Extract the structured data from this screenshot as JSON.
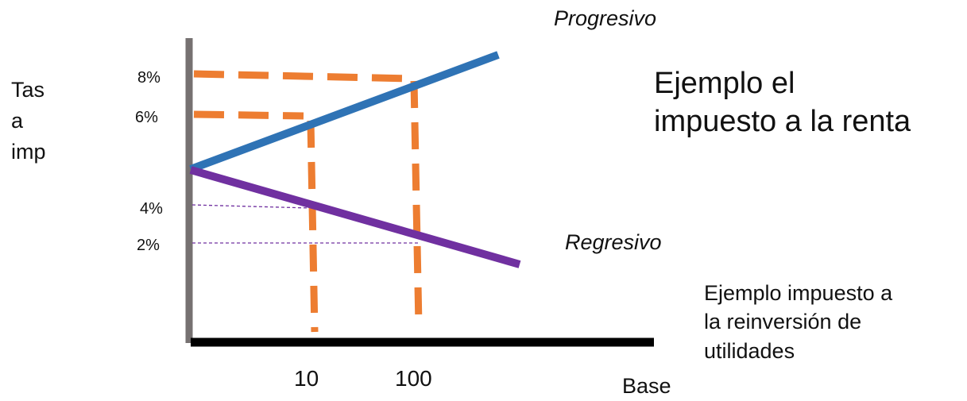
{
  "diagram": {
    "y_axis_label_lines": [
      "Tas",
      "a",
      "imp"
    ],
    "x_axis_label": "Base",
    "y_ticks": [
      "8%",
      "6%",
      "4%",
      "2%"
    ],
    "x_ticks": [
      "10",
      "100"
    ],
    "series": {
      "progressive": {
        "label": "Progresivo",
        "color": "#2f73b5"
      },
      "regressive": {
        "label": "Regresivo",
        "color": "#7030a0"
      }
    },
    "guide_color": "#ed7d31",
    "axis_color_y": "#767171",
    "axis_color_x": "#000000",
    "notes": {
      "progressive_lines": [
        "Ejemplo el",
        "impuesto a la renta"
      ],
      "regressive_lines": [
        "Ejemplo impuesto a",
        "la reinversión de",
        "utilidades"
      ]
    }
  }
}
